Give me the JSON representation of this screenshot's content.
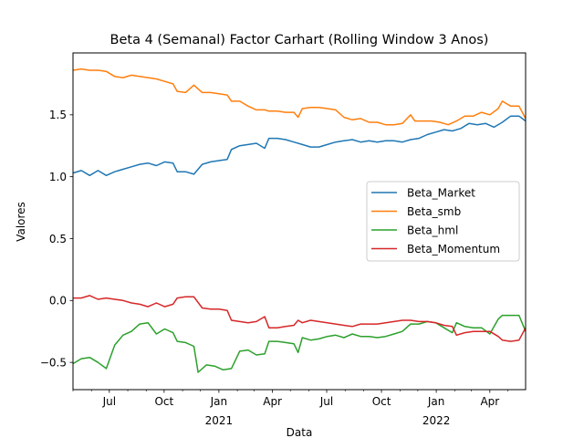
{
  "chart_data": {
    "type": "line",
    "title": "Beta 4 (Semanal) Factor Carhart (Rolling Window 3 Anos)",
    "xlabel": "Data",
    "ylabel": "Valores",
    "xlim": [
      "2020-05-01",
      "2022-05-31"
    ],
    "ylim": [
      -0.72,
      2.0
    ],
    "y_ticks": [
      -0.5,
      0.0,
      0.5,
      1.0,
      1.5
    ],
    "y_tick_labels": [
      "−0.5",
      "0.0",
      "0.5",
      "1.0",
      "1.5"
    ],
    "x_ticks": [
      {
        "date": "2020-07-01",
        "label": "Jul",
        "sublabel": ""
      },
      {
        "date": "2020-10-01",
        "label": "Oct",
        "sublabel": ""
      },
      {
        "date": "2021-01-01",
        "label": "Jan",
        "sublabel": "2021"
      },
      {
        "date": "2021-04-01",
        "label": "Apr",
        "sublabel": ""
      },
      {
        "date": "2021-07-01",
        "label": "Jul",
        "sublabel": ""
      },
      {
        "date": "2021-10-01",
        "label": "Oct",
        "sublabel": ""
      },
      {
        "date": "2022-01-01",
        "label": "Jan",
        "sublabel": "2022"
      },
      {
        "date": "2022-04-01",
        "label": "Apr",
        "sublabel": ""
      }
    ],
    "grid": false,
    "legend_position": "center-right",
    "series": [
      {
        "name": "Beta_Market",
        "color": "#1f77b4",
        "points": [
          [
            "2020-05-01",
            1.03
          ],
          [
            "2020-05-15",
            1.05
          ],
          [
            "2020-05-29",
            1.01
          ],
          [
            "2020-06-12",
            1.05
          ],
          [
            "2020-06-26",
            1.01
          ],
          [
            "2020-07-10",
            1.04
          ],
          [
            "2020-07-24",
            1.06
          ],
          [
            "2020-08-07",
            1.08
          ],
          [
            "2020-08-21",
            1.1
          ],
          [
            "2020-09-04",
            1.11
          ],
          [
            "2020-09-18",
            1.09
          ],
          [
            "2020-10-02",
            1.12
          ],
          [
            "2020-10-16",
            1.11
          ],
          [
            "2020-10-23",
            1.04
          ],
          [
            "2020-11-06",
            1.04
          ],
          [
            "2020-11-20",
            1.02
          ],
          [
            "2020-12-04",
            1.1
          ],
          [
            "2020-12-18",
            1.12
          ],
          [
            "2021-01-01",
            1.13
          ],
          [
            "2021-01-15",
            1.14
          ],
          [
            "2021-01-22",
            1.22
          ],
          [
            "2021-02-05",
            1.25
          ],
          [
            "2021-02-19",
            1.26
          ],
          [
            "2021-03-05",
            1.27
          ],
          [
            "2021-03-19",
            1.23
          ],
          [
            "2021-03-26",
            1.31
          ],
          [
            "2021-04-09",
            1.31
          ],
          [
            "2021-04-23",
            1.3
          ],
          [
            "2021-05-07",
            1.28
          ],
          [
            "2021-05-21",
            1.26
          ],
          [
            "2021-06-04",
            1.24
          ],
          [
            "2021-06-18",
            1.24
          ],
          [
            "2021-07-02",
            1.26
          ],
          [
            "2021-07-16",
            1.28
          ],
          [
            "2021-07-30",
            1.29
          ],
          [
            "2021-08-13",
            1.3
          ],
          [
            "2021-08-27",
            1.28
          ],
          [
            "2021-09-10",
            1.29
          ],
          [
            "2021-09-24",
            1.28
          ],
          [
            "2021-10-08",
            1.29
          ],
          [
            "2021-10-22",
            1.29
          ],
          [
            "2021-11-05",
            1.28
          ],
          [
            "2021-11-19",
            1.3
          ],
          [
            "2021-12-03",
            1.31
          ],
          [
            "2021-12-17",
            1.34
          ],
          [
            "2021-12-31",
            1.36
          ],
          [
            "2022-01-14",
            1.38
          ],
          [
            "2022-01-28",
            1.37
          ],
          [
            "2022-02-11",
            1.39
          ],
          [
            "2022-02-25",
            1.43
          ],
          [
            "2022-03-11",
            1.42
          ],
          [
            "2022-03-25",
            1.43
          ],
          [
            "2022-04-08",
            1.4
          ],
          [
            "2022-04-22",
            1.44
          ],
          [
            "2022-05-06",
            1.49
          ],
          [
            "2022-05-20",
            1.49
          ],
          [
            "2022-05-31",
            1.45
          ]
        ]
      },
      {
        "name": "Beta_smb",
        "color": "#ff7f0e",
        "points": [
          [
            "2020-05-01",
            1.86
          ],
          [
            "2020-05-15",
            1.87
          ],
          [
            "2020-05-29",
            1.86
          ],
          [
            "2020-06-12",
            1.86
          ],
          [
            "2020-06-26",
            1.85
          ],
          [
            "2020-07-10",
            1.81
          ],
          [
            "2020-07-24",
            1.8
          ],
          [
            "2020-08-07",
            1.82
          ],
          [
            "2020-08-21",
            1.81
          ],
          [
            "2020-09-04",
            1.8
          ],
          [
            "2020-09-18",
            1.79
          ],
          [
            "2020-10-02",
            1.77
          ],
          [
            "2020-10-16",
            1.75
          ],
          [
            "2020-10-23",
            1.69
          ],
          [
            "2020-11-06",
            1.68
          ],
          [
            "2020-11-20",
            1.74
          ],
          [
            "2020-12-04",
            1.68
          ],
          [
            "2020-12-18",
            1.68
          ],
          [
            "2021-01-01",
            1.67
          ],
          [
            "2021-01-15",
            1.66
          ],
          [
            "2021-01-22",
            1.61
          ],
          [
            "2021-02-05",
            1.61
          ],
          [
            "2021-02-19",
            1.57
          ],
          [
            "2021-03-05",
            1.54
          ],
          [
            "2021-03-19",
            1.54
          ],
          [
            "2021-03-26",
            1.53
          ],
          [
            "2021-04-09",
            1.53
          ],
          [
            "2021-04-23",
            1.52
          ],
          [
            "2021-05-07",
            1.52
          ],
          [
            "2021-05-14",
            1.48
          ],
          [
            "2021-05-21",
            1.55
          ],
          [
            "2021-06-04",
            1.56
          ],
          [
            "2021-06-18",
            1.56
          ],
          [
            "2021-07-02",
            1.55
          ],
          [
            "2021-07-16",
            1.54
          ],
          [
            "2021-07-30",
            1.48
          ],
          [
            "2021-08-13",
            1.46
          ],
          [
            "2021-08-27",
            1.47
          ],
          [
            "2021-09-10",
            1.44
          ],
          [
            "2021-09-24",
            1.44
          ],
          [
            "2021-10-08",
            1.42
          ],
          [
            "2021-10-22",
            1.42
          ],
          [
            "2021-11-05",
            1.43
          ],
          [
            "2021-11-19",
            1.5
          ],
          [
            "2021-11-26",
            1.45
          ],
          [
            "2021-12-10",
            1.45
          ],
          [
            "2021-12-24",
            1.45
          ],
          [
            "2022-01-07",
            1.44
          ],
          [
            "2022-01-21",
            1.42
          ],
          [
            "2022-02-04",
            1.45
          ],
          [
            "2022-02-18",
            1.49
          ],
          [
            "2022-03-04",
            1.49
          ],
          [
            "2022-03-18",
            1.52
          ],
          [
            "2022-04-01",
            1.5
          ],
          [
            "2022-04-15",
            1.55
          ],
          [
            "2022-04-22",
            1.61
          ],
          [
            "2022-05-06",
            1.57
          ],
          [
            "2022-05-20",
            1.57
          ],
          [
            "2022-05-31",
            1.47
          ]
        ]
      },
      {
        "name": "Beta_hml",
        "color": "#2ca02c",
        "points": [
          [
            "2020-05-01",
            -0.51
          ],
          [
            "2020-05-15",
            -0.47
          ],
          [
            "2020-05-29",
            -0.46
          ],
          [
            "2020-06-12",
            -0.5
          ],
          [
            "2020-06-26",
            -0.55
          ],
          [
            "2020-07-10",
            -0.36
          ],
          [
            "2020-07-24",
            -0.28
          ],
          [
            "2020-08-07",
            -0.25
          ],
          [
            "2020-08-21",
            -0.19
          ],
          [
            "2020-09-04",
            -0.18
          ],
          [
            "2020-09-18",
            -0.27
          ],
          [
            "2020-10-02",
            -0.23
          ],
          [
            "2020-10-16",
            -0.26
          ],
          [
            "2020-10-23",
            -0.33
          ],
          [
            "2020-11-06",
            -0.34
          ],
          [
            "2020-11-20",
            -0.37
          ],
          [
            "2020-11-27",
            -0.58
          ],
          [
            "2020-12-11",
            -0.52
          ],
          [
            "2020-12-25",
            -0.53
          ],
          [
            "2021-01-08",
            -0.56
          ],
          [
            "2021-01-22",
            -0.55
          ],
          [
            "2021-02-05",
            -0.41
          ],
          [
            "2021-02-19",
            -0.4
          ],
          [
            "2021-03-05",
            -0.44
          ],
          [
            "2021-03-19",
            -0.43
          ],
          [
            "2021-03-26",
            -0.33
          ],
          [
            "2021-04-09",
            -0.33
          ],
          [
            "2021-04-23",
            -0.34
          ],
          [
            "2021-05-07",
            -0.35
          ],
          [
            "2021-05-14",
            -0.42
          ],
          [
            "2021-05-21",
            -0.3
          ],
          [
            "2021-06-04",
            -0.32
          ],
          [
            "2021-06-18",
            -0.31
          ],
          [
            "2021-07-02",
            -0.29
          ],
          [
            "2021-07-16",
            -0.28
          ],
          [
            "2021-07-30",
            -0.3
          ],
          [
            "2021-08-13",
            -0.27
          ],
          [
            "2021-08-27",
            -0.29
          ],
          [
            "2021-09-10",
            -0.29
          ],
          [
            "2021-09-24",
            -0.3
          ],
          [
            "2021-10-08",
            -0.29
          ],
          [
            "2021-10-22",
            -0.27
          ],
          [
            "2021-11-05",
            -0.25
          ],
          [
            "2021-11-19",
            -0.19
          ],
          [
            "2021-12-03",
            -0.19
          ],
          [
            "2021-12-17",
            -0.17
          ],
          [
            "2021-12-31",
            -0.18
          ],
          [
            "2022-01-14",
            -0.22
          ],
          [
            "2022-01-28",
            -0.26
          ],
          [
            "2022-02-04",
            -0.18
          ],
          [
            "2022-02-18",
            -0.21
          ],
          [
            "2022-03-04",
            -0.22
          ],
          [
            "2022-03-18",
            -0.22
          ],
          [
            "2022-04-01",
            -0.27
          ],
          [
            "2022-04-15",
            -0.15
          ],
          [
            "2022-04-22",
            -0.12
          ],
          [
            "2022-05-06",
            -0.12
          ],
          [
            "2022-05-20",
            -0.12
          ],
          [
            "2022-05-31",
            -0.25
          ]
        ]
      },
      {
        "name": "Beta_Momentum",
        "color": "#d62728",
        "points": [
          [
            "2020-05-01",
            0.02
          ],
          [
            "2020-05-15",
            0.02
          ],
          [
            "2020-05-29",
            0.04
          ],
          [
            "2020-06-12",
            0.01
          ],
          [
            "2020-06-26",
            0.02
          ],
          [
            "2020-07-10",
            0.01
          ],
          [
            "2020-07-24",
            0.0
          ],
          [
            "2020-08-07",
            -0.02
          ],
          [
            "2020-08-21",
            -0.03
          ],
          [
            "2020-09-04",
            -0.05
          ],
          [
            "2020-09-18",
            -0.02
          ],
          [
            "2020-10-02",
            -0.05
          ],
          [
            "2020-10-16",
            -0.03
          ],
          [
            "2020-10-23",
            0.02
          ],
          [
            "2020-11-06",
            0.03
          ],
          [
            "2020-11-20",
            0.03
          ],
          [
            "2020-12-04",
            -0.06
          ],
          [
            "2020-12-18",
            -0.07
          ],
          [
            "2021-01-01",
            -0.07
          ],
          [
            "2021-01-15",
            -0.08
          ],
          [
            "2021-01-22",
            -0.16
          ],
          [
            "2021-02-05",
            -0.17
          ],
          [
            "2021-02-19",
            -0.18
          ],
          [
            "2021-03-05",
            -0.17
          ],
          [
            "2021-03-19",
            -0.13
          ],
          [
            "2021-03-26",
            -0.22
          ],
          [
            "2021-04-09",
            -0.22
          ],
          [
            "2021-04-23",
            -0.21
          ],
          [
            "2021-05-07",
            -0.2
          ],
          [
            "2021-05-14",
            -0.16
          ],
          [
            "2021-05-21",
            -0.18
          ],
          [
            "2021-06-04",
            -0.16
          ],
          [
            "2021-06-18",
            -0.17
          ],
          [
            "2021-07-02",
            -0.18
          ],
          [
            "2021-07-16",
            -0.19
          ],
          [
            "2021-07-30",
            -0.2
          ],
          [
            "2021-08-13",
            -0.21
          ],
          [
            "2021-08-27",
            -0.19
          ],
          [
            "2021-09-10",
            -0.19
          ],
          [
            "2021-09-24",
            -0.19
          ],
          [
            "2021-10-08",
            -0.18
          ],
          [
            "2021-10-22",
            -0.17
          ],
          [
            "2021-11-05",
            -0.16
          ],
          [
            "2021-11-19",
            -0.16
          ],
          [
            "2021-12-03",
            -0.17
          ],
          [
            "2021-12-17",
            -0.17
          ],
          [
            "2021-12-31",
            -0.18
          ],
          [
            "2022-01-14",
            -0.2
          ],
          [
            "2022-01-28",
            -0.21
          ],
          [
            "2022-02-04",
            -0.28
          ],
          [
            "2022-02-18",
            -0.26
          ],
          [
            "2022-03-04",
            -0.25
          ],
          [
            "2022-03-18",
            -0.25
          ],
          [
            "2022-04-01",
            -0.25
          ],
          [
            "2022-04-15",
            -0.29
          ],
          [
            "2022-04-22",
            -0.32
          ],
          [
            "2022-05-06",
            -0.33
          ],
          [
            "2022-05-20",
            -0.32
          ],
          [
            "2022-05-31",
            -0.22
          ]
        ]
      }
    ]
  }
}
